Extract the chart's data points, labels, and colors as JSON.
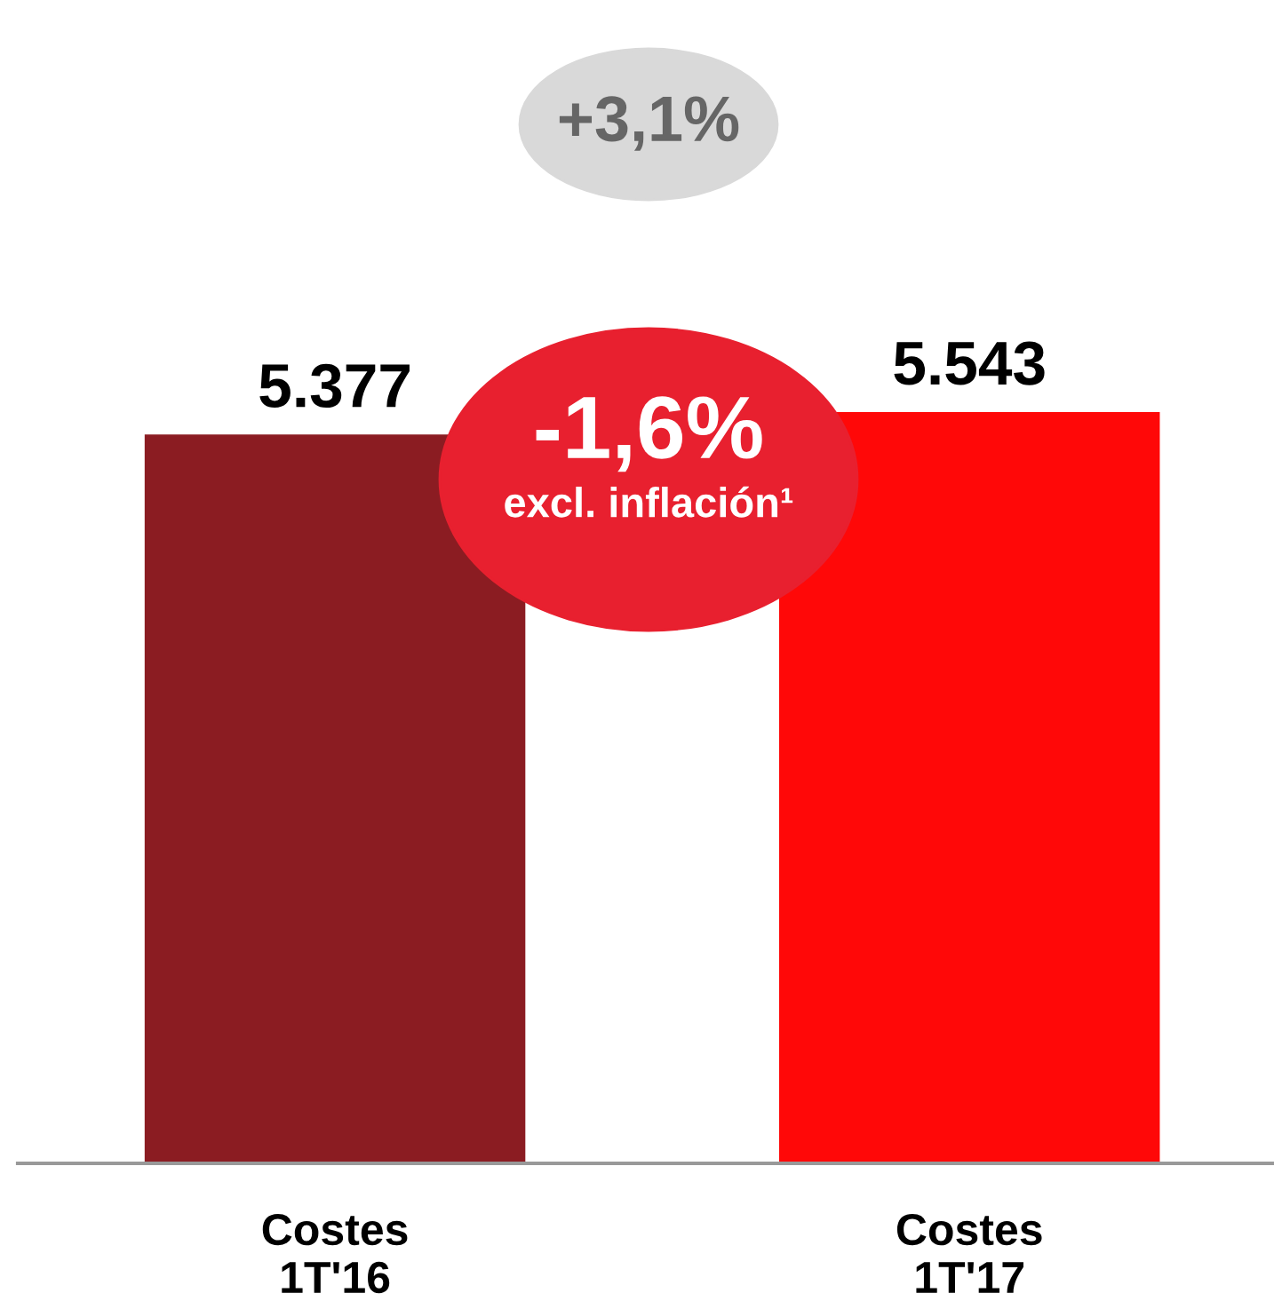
{
  "chart_data": {
    "type": "bar",
    "categories": [
      "Costes\n1T'16",
      "Costes\n1T'17"
    ],
    "values": [
      5377,
      5543
    ],
    "colors": [
      "#8b1c22",
      "#ff0808"
    ],
    "value_labels": [
      "5.377",
      "5.543"
    ],
    "annotations": [
      "+3,1%",
      "-1,6%",
      "excl. inflación¹"
    ],
    "tick_labels": "x",
    "grid": false,
    "legend": false
  }
}
